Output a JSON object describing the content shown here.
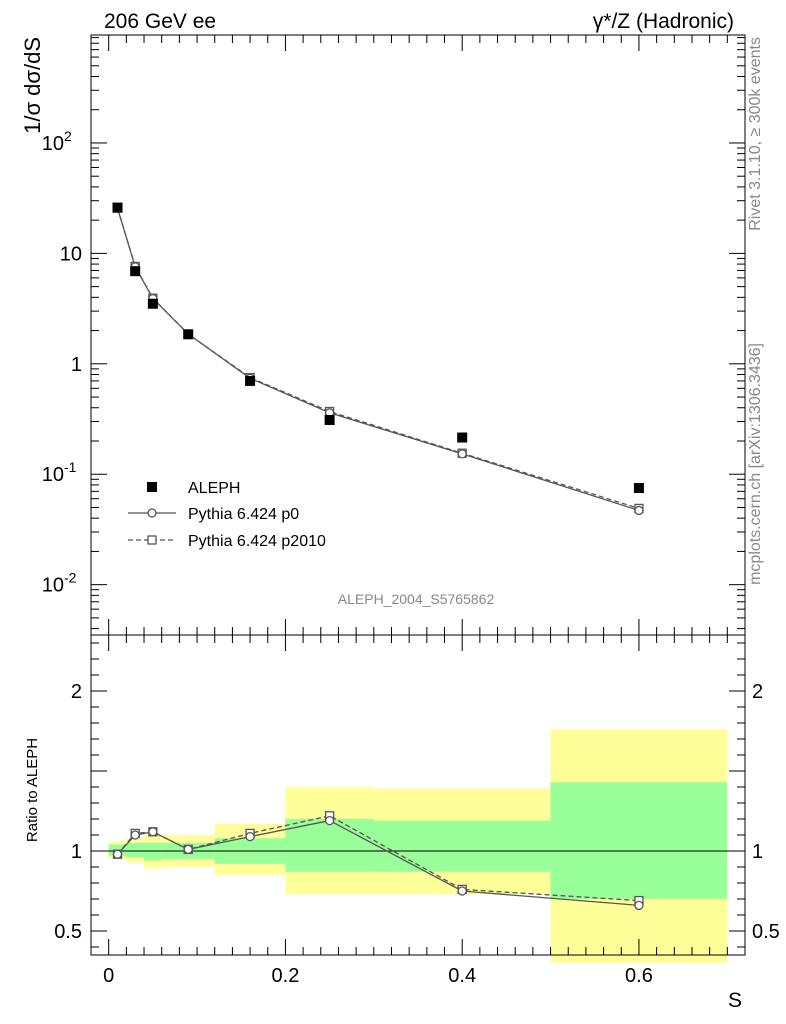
{
  "header": {
    "left": "206 GeV ee",
    "right": "γ*/Z (Hadronic)"
  },
  "side_text": {
    "top": "Rivet 3.1.10, ≥ 300k events",
    "bottom": "mcplots.cern.ch [arXiv:1306.3436]"
  },
  "watermark": "ALEPH_2004_S5765862",
  "colors": {
    "band_outer": "#ffff99",
    "band_inner": "#99ff99",
    "data": "#000000",
    "mc_p0": "#555555",
    "mc_p2010": "#555555"
  },
  "chart_data": [
    {
      "type": "scatter",
      "title": "",
      "ylabel": "1/σ  dσ/dS",
      "xlabel": "",
      "yscale": "log",
      "xlim": [
        -0.02,
        0.72
      ],
      "ylim": [
        0.0035,
        950
      ],
      "y_ticks": [
        {
          "value": 0.01,
          "label": "10",
          "exp": "-2"
        },
        {
          "value": 0.1,
          "label": "10",
          "exp": "-1"
        },
        {
          "value": 1,
          "label": "1",
          "exp": ""
        },
        {
          "value": 10,
          "label": "10",
          "exp": ""
        },
        {
          "value": 100,
          "label": "10",
          "exp": "2"
        }
      ],
      "legend_position": "lower-left",
      "series": [
        {
          "name": "ALEPH",
          "style": "square-filled",
          "x": [
            0.01,
            0.03,
            0.05,
            0.09,
            0.16,
            0.25,
            0.4,
            0.6
          ],
          "y": [
            26,
            6.9,
            3.5,
            1.85,
            0.7,
            0.31,
            0.215,
            0.075
          ]
        },
        {
          "name": "Pythia 6.424 p0",
          "style": "circle-open-solid",
          "x": [
            0.01,
            0.03,
            0.05,
            0.09,
            0.16,
            0.25,
            0.4,
            0.6
          ],
          "y": [
            25.7,
            7.55,
            3.9,
            1.86,
            0.74,
            0.36,
            0.153,
            0.047
          ]
        },
        {
          "name": "Pythia 6.424 p2010",
          "style": "square-open-dashed",
          "x": [
            0.01,
            0.03,
            0.05,
            0.09,
            0.16,
            0.25,
            0.4,
            0.6
          ],
          "y": [
            25.7,
            7.62,
            3.93,
            1.86,
            0.75,
            0.37,
            0.155,
            0.049
          ]
        }
      ]
    },
    {
      "type": "scatter",
      "ylabel": "Ratio to ALEPH",
      "xlabel": "S",
      "xlim": [
        -0.02,
        0.72
      ],
      "ylim": [
        0.35,
        2.35
      ],
      "x_ticks": [
        {
          "value": 0,
          "label": "0"
        },
        {
          "value": 0.2,
          "label": "0.2"
        },
        {
          "value": 0.4,
          "label": "0.4"
        },
        {
          "value": 0.6,
          "label": "0.6"
        }
      ],
      "y_ticks": [
        {
          "value": 0.5,
          "label": "0.5"
        },
        {
          "value": 1,
          "label": "1"
        },
        {
          "value": 2,
          "label": "2"
        }
      ],
      "reference_line": 1,
      "bands": [
        {
          "x0": 0.0,
          "x1": 0.02,
          "outer": [
            0.95,
            1.06
          ],
          "inner": [
            0.97,
            1.04
          ]
        },
        {
          "x0": 0.02,
          "x1": 0.04,
          "outer": [
            0.93,
            1.08
          ],
          "inner": [
            0.96,
            1.05
          ]
        },
        {
          "x0": 0.04,
          "x1": 0.06,
          "outer": [
            0.89,
            1.1
          ],
          "inner": [
            0.94,
            1.05
          ]
        },
        {
          "x0": 0.06,
          "x1": 0.12,
          "outer": [
            0.9,
            1.1
          ],
          "inner": [
            0.95,
            1.05
          ]
        },
        {
          "x0": 0.12,
          "x1": 0.2,
          "outer": [
            0.85,
            1.17
          ],
          "inner": [
            0.92,
            1.08
          ]
        },
        {
          "x0": 0.2,
          "x1": 0.3,
          "outer": [
            0.73,
            1.4
          ],
          "inner": [
            0.87,
            1.2
          ]
        },
        {
          "x0": 0.3,
          "x1": 0.5,
          "outer": [
            0.73,
            1.39
          ],
          "inner": [
            0.87,
            1.19
          ]
        },
        {
          "x0": 0.5,
          "x1": 0.7,
          "outer": [
            0.3,
            1.76
          ],
          "inner": [
            0.7,
            1.43
          ]
        }
      ],
      "series": [
        {
          "name": "Pythia 6.424 p0",
          "style": "circle-open-solid",
          "x": [
            0.01,
            0.03,
            0.05,
            0.09,
            0.16,
            0.25,
            0.4,
            0.6
          ],
          "y": [
            0.98,
            1.1,
            1.12,
            1.01,
            1.09,
            1.19,
            0.75,
            0.66
          ]
        },
        {
          "name": "Pythia 6.424 p2010",
          "style": "square-open-dashed",
          "x": [
            0.01,
            0.03,
            0.05,
            0.09,
            0.16,
            0.25,
            0.4,
            0.6
          ],
          "y": [
            0.98,
            1.11,
            1.12,
            1.01,
            1.11,
            1.22,
            0.76,
            0.69
          ]
        }
      ]
    }
  ]
}
